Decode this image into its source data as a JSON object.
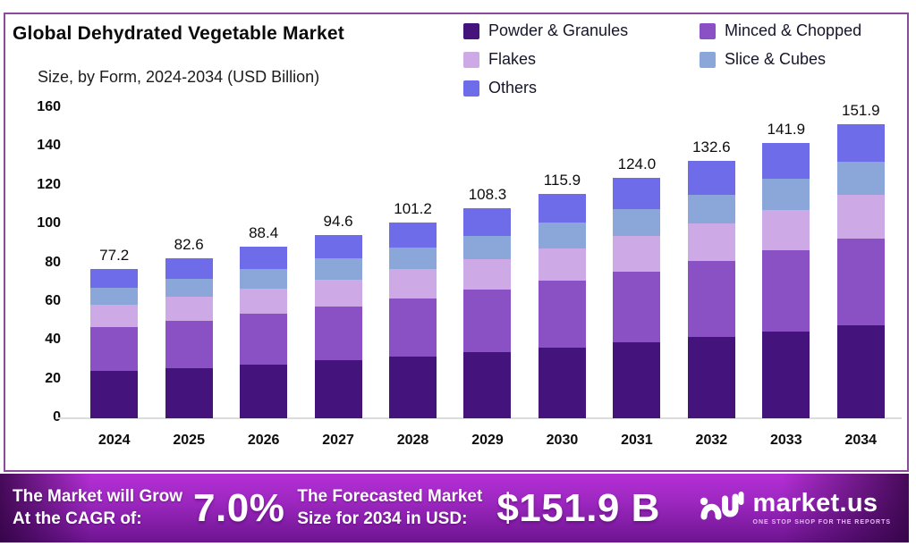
{
  "frame": {
    "title": "Global Dehydrated Vegetable Market",
    "subtitle": "Size, by Form, 2024-2034 (USD Billion)"
  },
  "colors": {
    "frame_border": "#8b4a9b",
    "axis_line": "#dcdcdc",
    "banner_bright": "#b52fd6",
    "banner_dark": "#4a0a60",
    "powder": "#45137c",
    "minced": "#8951c4",
    "flakes": "#cda9e6",
    "slice": "#8ba7d9",
    "others": "#6f6ce9"
  },
  "legend": {
    "items": [
      {
        "label": "Powder & Granules",
        "color": "#45137c"
      },
      {
        "label": "Minced & Chopped",
        "color": "#8951c4"
      },
      {
        "label": "Flakes",
        "color": "#cda9e6"
      },
      {
        "label": "Slice & Cubes",
        "color": "#8ba7d9"
      },
      {
        "label": "Others",
        "color": "#6f6ce9"
      }
    ]
  },
  "chart_data": {
    "type": "bar",
    "subtype": "stacked-vertical",
    "title": "Global Dehydrated Vegetable Market",
    "subtitle": "Size, by Form, 2024-2034 (USD Billion)",
    "categories": [
      "2024",
      "2025",
      "2026",
      "2027",
      "2028",
      "2029",
      "2030",
      "2031",
      "2032",
      "2033",
      "2034"
    ],
    "totals_display": [
      "77.2",
      "82.6",
      "88.4",
      "94.6",
      "101.2",
      "108.3",
      "115.9",
      "124.0",
      "132.6",
      "141.9",
      "151.9"
    ],
    "series": [
      {
        "name": "Powder & Granules",
        "color": "#45137c",
        "values": [
          24.3,
          26.0,
          27.8,
          29.8,
          31.9,
          34.1,
          36.5,
          39.1,
          41.8,
          44.7,
          47.8
        ]
      },
      {
        "name": "Minced & Chopped",
        "color": "#8951c4",
        "values": [
          22.9,
          24.4,
          26.2,
          28.0,
          30.0,
          32.1,
          34.3,
          36.7,
          39.2,
          42.0,
          45.0
        ]
      },
      {
        "name": "Flakes",
        "color": "#cda9e6",
        "values": [
          11.3,
          12.1,
          13.0,
          13.9,
          14.9,
          15.9,
          17.0,
          18.2,
          19.5,
          20.9,
          22.3
        ]
      },
      {
        "name": "Slice & Cubes",
        "color": "#8ba7d9",
        "values": [
          8.7,
          9.3,
          10.0,
          10.7,
          11.4,
          12.2,
          13.1,
          14.0,
          15.0,
          16.0,
          17.2
        ]
      },
      {
        "name": "Others",
        "color": "#6f6ce9",
        "values": [
          10.0,
          10.8,
          11.4,
          12.2,
          13.0,
          14.0,
          15.0,
          16.0,
          17.1,
          18.3,
          19.6
        ]
      }
    ],
    "ylim": [
      0,
      160
    ],
    "yticks": [
      0,
      20,
      40,
      60,
      80,
      100,
      120,
      140,
      160
    ],
    "grid": false,
    "legend_position": "top-right",
    "value_labels": "total-above-bar"
  },
  "banner": {
    "cagr_label_line1": "The Market will Grow",
    "cagr_label_line2": "At the CAGR of:",
    "cagr_value": "7.0%",
    "forecast_label_line1": "The Forecasted Market",
    "forecast_label_line2": "Size for 2034 in USD:",
    "forecast_value": "$151.9 B",
    "logo_text": "market.us",
    "logo_tagline": "ONE STOP SHOP FOR THE REPORTS"
  }
}
